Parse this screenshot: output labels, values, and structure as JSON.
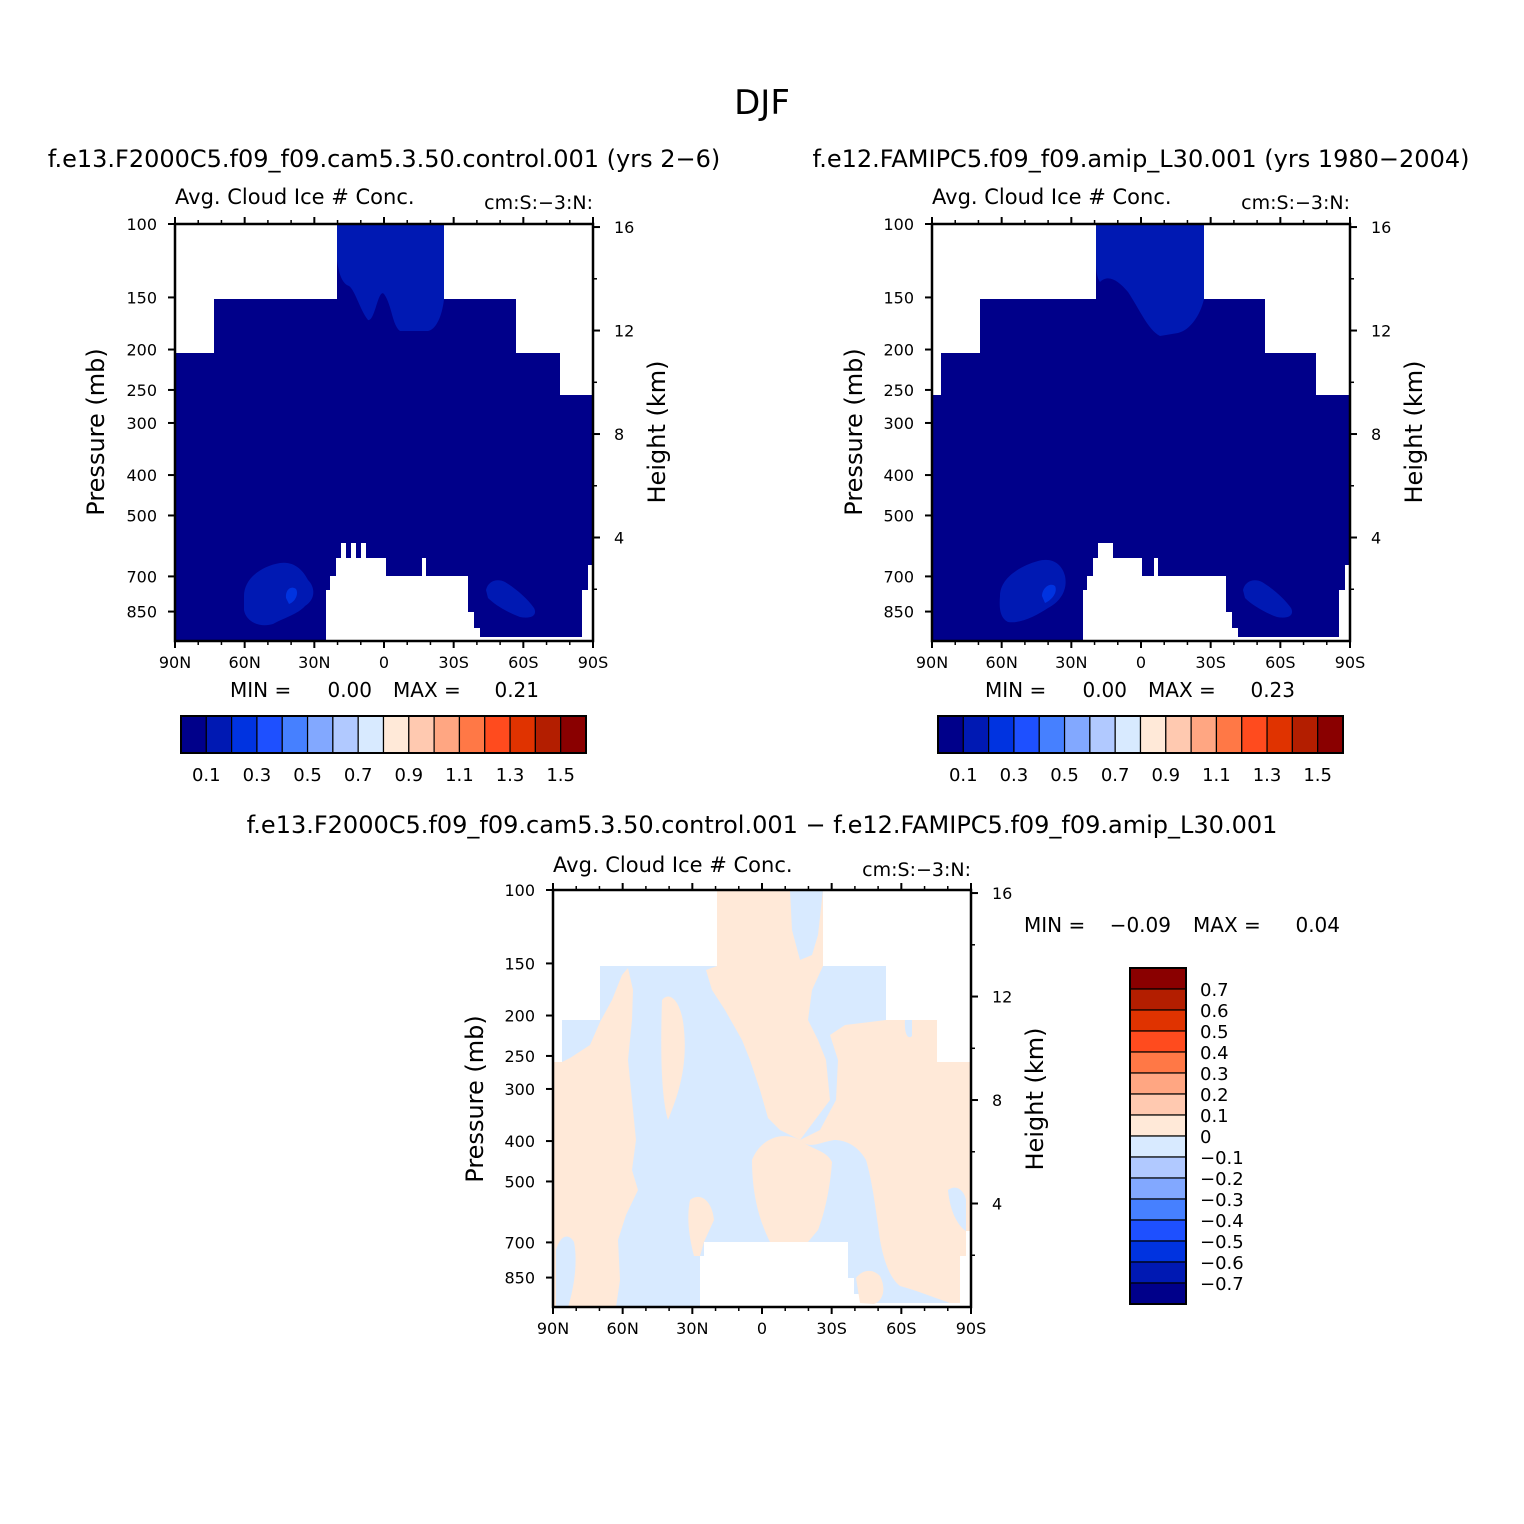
{
  "figure": {
    "title": "DJF",
    "panels": [
      {
        "id": "control",
        "case_title": "f.e13.F2000C5.f09_f09.cam5.3.50.control.001 (yrs 2−6)",
        "left_title": "Avg. Cloud Ice # Conc.",
        "right_title": "cm:S:−3:N:",
        "ylabel": "Pressure (mb)",
        "y2label": "Height (km)",
        "stats": {
          "min_label": "MIN =",
          "min_value": "0.00",
          "max_label": "MAX =",
          "max_value": "0.21"
        }
      },
      {
        "id": "amip",
        "case_title": "f.e12.FAMIPC5.f09_f09.amip_L30.001 (yrs 1980−2004)",
        "left_title": "Avg. Cloud Ice # Conc.",
        "right_title": "cm:S:−3:N:",
        "ylabel": "Pressure (mb)",
        "y2label": "Height (km)",
        "stats": {
          "min_label": "MIN =",
          "min_value": "0.00",
          "max_label": "MAX =",
          "max_value": "0.23"
        }
      },
      {
        "id": "diff",
        "case_title": "f.e13.F2000C5.f09_f09.cam5.3.50.control.001 − f.e12.FAMIPC5.f09_f09.amip_L30.001",
        "left_title": "Avg. Cloud Ice # Conc.",
        "right_title": "cm:S:−3:N:",
        "ylabel": "Pressure (mb)",
        "y2label": "Height (km)",
        "stats": {
          "min_label": "MIN =",
          "min_value": "−0.09",
          "max_label": "MAX =",
          "max_value": "0.04"
        }
      }
    ]
  },
  "chart_data": [
    {
      "type": "heatmap",
      "panel": "control",
      "x_ticks": [
        "90N",
        "60N",
        "30N",
        "0",
        "30S",
        "60S",
        "90S"
      ],
      "y_ticks": [
        "100",
        "150",
        "200",
        "250",
        "300",
        "400",
        "500",
        "700",
        "850"
      ],
      "y2_ticks": [
        "16",
        "12",
        "8",
        "4"
      ],
      "ylim": [
        1000,
        100
      ],
      "y_scale": "log",
      "colorbar": {
        "orientation": "horizontal",
        "labels": [
          "0.1",
          "0.3",
          "0.5",
          "0.7",
          "0.9",
          "1.1",
          "1.3",
          "1.5"
        ],
        "colors": [
          "#00008a",
          "#0019b3",
          "#0033e0",
          "#1e50ff",
          "#4680ff",
          "#82a8ff",
          "#b1c9ff",
          "#d8eaff",
          "#ffe9d8",
          "#ffc9b0",
          "#ffa682",
          "#ff7846",
          "#ff4b1e",
          "#e03300",
          "#b31e00",
          "#8a0000"
        ]
      },
      "max": 0.21,
      "min": 0.0
    },
    {
      "type": "heatmap",
      "panel": "amip",
      "x_ticks": [
        "90N",
        "60N",
        "30N",
        "0",
        "30S",
        "60S",
        "90S"
      ],
      "y_ticks": [
        "100",
        "150",
        "200",
        "250",
        "300",
        "400",
        "500",
        "700",
        "850"
      ],
      "y2_ticks": [
        "16",
        "12",
        "8",
        "4"
      ],
      "ylim": [
        1000,
        100
      ],
      "y_scale": "log",
      "colorbar": {
        "orientation": "horizontal",
        "labels": [
          "0.1",
          "0.3",
          "0.5",
          "0.7",
          "0.9",
          "1.1",
          "1.3",
          "1.5"
        ],
        "colors": [
          "#00008a",
          "#0019b3",
          "#0033e0",
          "#1e50ff",
          "#4680ff",
          "#82a8ff",
          "#b1c9ff",
          "#d8eaff",
          "#ffe9d8",
          "#ffc9b0",
          "#ffa682",
          "#ff7846",
          "#ff4b1e",
          "#e03300",
          "#b31e00",
          "#8a0000"
        ]
      },
      "max": 0.23,
      "min": 0.0
    },
    {
      "type": "heatmap",
      "panel": "diff",
      "x_ticks": [
        "90N",
        "60N",
        "30N",
        "0",
        "30S",
        "60S",
        "90S"
      ],
      "y_ticks": [
        "100",
        "150",
        "200",
        "250",
        "300",
        "400",
        "500",
        "700",
        "850"
      ],
      "y2_ticks": [
        "16",
        "12",
        "8",
        "4"
      ],
      "ylim": [
        1000,
        100
      ],
      "y_scale": "log",
      "colorbar": {
        "orientation": "vertical",
        "labels": [
          "0.7",
          "0.6",
          "0.5",
          "0.4",
          "0.3",
          "0.2",
          "0.1",
          "0",
          "−0.1",
          "−0.2",
          "−0.3",
          "−0.4",
          "−0.5",
          "−0.6",
          "−0.7"
        ],
        "colors": [
          "#8a0000",
          "#b31e00",
          "#e03300",
          "#ff4b1e",
          "#ff7846",
          "#ffa682",
          "#ffc9b0",
          "#ffe9d8",
          "#d8eaff",
          "#b1c9ff",
          "#82a8ff",
          "#4680ff",
          "#1e50ff",
          "#0033e0",
          "#0019b3",
          "#00008a"
        ]
      },
      "max": 0.04,
      "min": -0.09
    }
  ]
}
